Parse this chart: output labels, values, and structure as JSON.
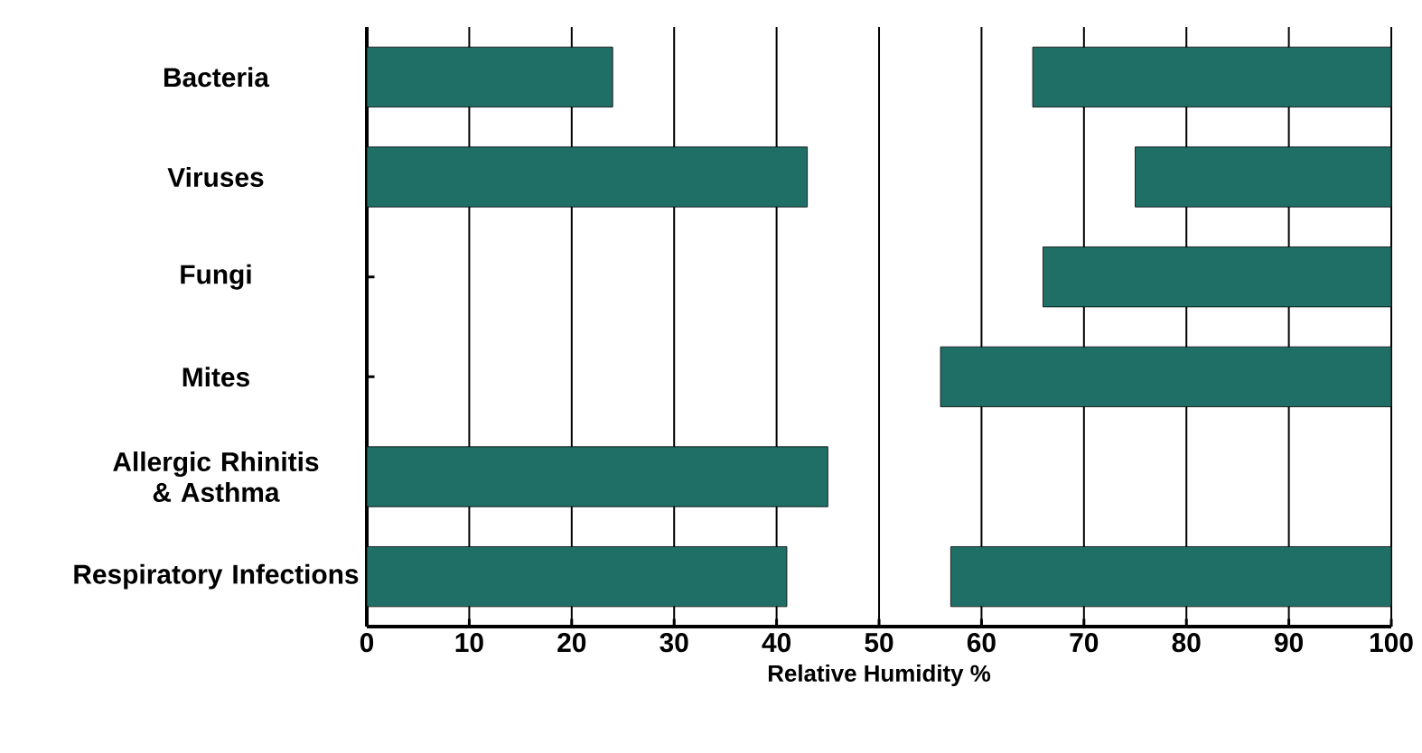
{
  "chart_data": {
    "type": "bar",
    "orientation": "horizontal",
    "categories": [
      "Bacteria",
      "Viruses",
      "Fungi",
      "Mites",
      "Allergic Rhinitis & Asthma",
      "Respiratory Infections"
    ],
    "series": [
      {
        "color": "#1f6f66",
        "base": [
          0,
          0,
          null,
          null,
          0,
          0
        ],
        "values": [
          24,
          43,
          null,
          null,
          45,
          41
        ]
      },
      {
        "color": "#1f6f66",
        "base": [
          65,
          75,
          66,
          56,
          null,
          57
        ],
        "values": [
          35,
          25,
          34,
          44,
          null,
          43
        ]
      }
    ],
    "xlabel": "Relative Humidity %",
    "xlim": [
      0,
      100
    ],
    "xticks": [
      0,
      10,
      20,
      30,
      40,
      50,
      60,
      70,
      80,
      90,
      100
    ],
    "grid": "x"
  }
}
